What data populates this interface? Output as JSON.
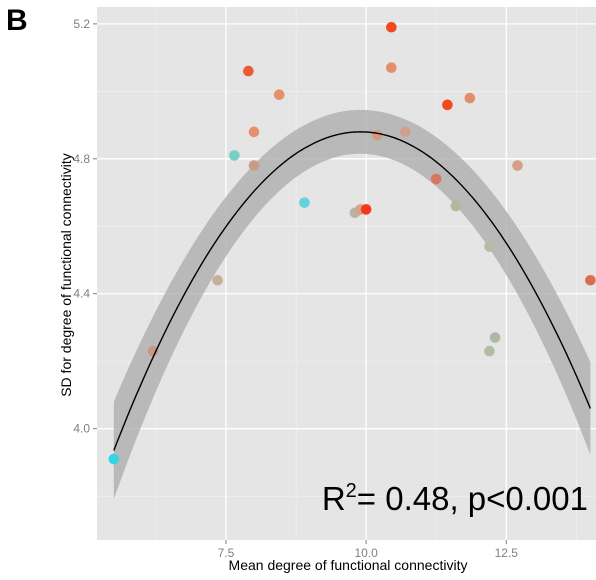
{
  "chart_data": {
    "type": "scatter",
    "panel_label": "B",
    "xlabel": "Mean degree of functional connectivity",
    "ylabel": "SD for degree of functional connectivity",
    "xlim": [
      5.2,
      14.1
    ],
    "ylim": [
      3.67,
      5.25
    ],
    "x_ticks": [
      7.5,
      10.0,
      12.5
    ],
    "x_tick_labels": [
      "7.5",
      "10.0",
      "12.5"
    ],
    "y_ticks": [
      4.0,
      4.4,
      4.8,
      5.2
    ],
    "y_tick_labels": [
      "4.0",
      "4.4",
      "4.8",
      "5.2"
    ],
    "grid": true,
    "background": "#e5e5e5",
    "annotation": {
      "prefix": "R",
      "superscript": "2",
      "rest": "= 0.48, p<0.001"
    },
    "fit": {
      "type": "quadratic",
      "x_range": [
        5.5,
        14.0
      ],
      "vertex_x": 9.9,
      "vertex_y": 4.88,
      "a": -0.0488,
      "band_color": "#a9a9a9"
    },
    "points": [
      {
        "x": 5.5,
        "y": 3.91,
        "color": "#33d6e8"
      },
      {
        "x": 6.2,
        "y": 4.23,
        "color": "#c49a86"
      },
      {
        "x": 7.35,
        "y": 4.44,
        "color": "#c7b09a"
      },
      {
        "x": 7.65,
        "y": 4.81,
        "color": "#78cfc2"
      },
      {
        "x": 7.9,
        "y": 5.06,
        "color": "#f05a32"
      },
      {
        "x": 8.0,
        "y": 4.88,
        "color": "#e8906e"
      },
      {
        "x": 8.0,
        "y": 4.78,
        "color": "#c79d88"
      },
      {
        "x": 8.45,
        "y": 4.99,
        "color": "#e6906c"
      },
      {
        "x": 8.9,
        "y": 4.67,
        "color": "#64d3dc"
      },
      {
        "x": 9.8,
        "y": 4.64,
        "color": "#b7b5a0"
      },
      {
        "x": 9.9,
        "y": 4.65,
        "color": "#d9a286"
      },
      {
        "x": 10.0,
        "y": 4.65,
        "color": "#f53a1c"
      },
      {
        "x": 10.2,
        "y": 4.87,
        "color": "#d39b84"
      },
      {
        "x": 10.45,
        "y": 5.19,
        "color": "#f4481e"
      },
      {
        "x": 10.45,
        "y": 5.07,
        "color": "#e98c6a"
      },
      {
        "x": 10.7,
        "y": 4.88,
        "color": "#cfa08c"
      },
      {
        "x": 11.25,
        "y": 4.74,
        "color": "#d9775e"
      },
      {
        "x": 11.45,
        "y": 4.96,
        "color": "#f44a20"
      },
      {
        "x": 11.6,
        "y": 4.66,
        "color": "#b9b69e"
      },
      {
        "x": 11.85,
        "y": 4.98,
        "color": "#e58c6c"
      },
      {
        "x": 12.2,
        "y": 4.54,
        "color": "#b4bca4"
      },
      {
        "x": 12.2,
        "y": 4.23,
        "color": "#b5bba5"
      },
      {
        "x": 12.3,
        "y": 4.27,
        "color": "#aabaa3"
      },
      {
        "x": 12.7,
        "y": 4.78,
        "color": "#d79e86"
      },
      {
        "x": 14.0,
        "y": 4.44,
        "color": "#dc6c50"
      }
    ]
  }
}
